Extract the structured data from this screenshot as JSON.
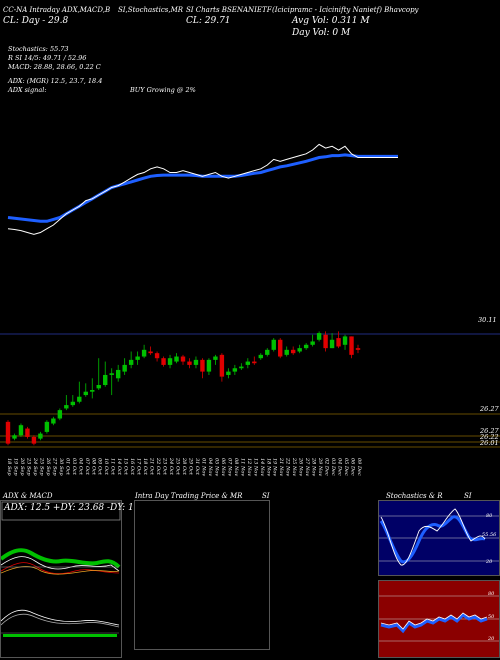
{
  "header": {
    "col1": "CC-NA Intraday ADX,MACD,B",
    "col2": "SI,Stochastics,MR",
    "col3": "SI Charts BSENANIETF",
    "col4": "(Icicipramc - Icicinifty Nanietf) Bhavcopy",
    "line2_left": "CL: Day - 29.8",
    "line2_mid": "CL: 29.71",
    "avg_vol": "Avg Vol: 0.311 M",
    "day_vol": "Day Vol: 0  M"
  },
  "indicators": {
    "stochastics": "Stochastics: 55.73",
    "rsi": "R          SI 14/5: 49.71 / 52.96",
    "macd": "MACD: 28.88, 28.66, 0.22  C",
    "adx": "ADX:                        (MGR) 12.5,  23.7,  18.4",
    "adx_signal": "ADX  signal:",
    "buy": "BUY Growing @ 2%"
  },
  "price_labels": [
    "30.11",
    "26.27",
    "26.27",
    "26.22",
    "26.01"
  ],
  "chart_data": {
    "type": "candlestick",
    "dates": [
      "18 Sep",
      "19 Sep",
      "20 Sep",
      "23 Sep",
      "24 Sep",
      "25 Sep",
      "26 Sep",
      "27 Sep",
      "30 Sep",
      "01 Oct",
      "03 Oct",
      "04 Oct",
      "07 Oct",
      "08 Oct",
      "09 Oct",
      "10 Oct",
      "11 Oct",
      "14 Oct",
      "15 Oct",
      "16 Oct",
      "17 Oct",
      "18 Oct",
      "21 Oct",
      "22 Oct",
      "23 Oct",
      "24 Oct",
      "25 Oct",
      "28 Oct",
      "29 Oct",
      "31 Oct",
      "01 Nov",
      "04 Nov",
      "05 Nov",
      "06 Nov",
      "07 Nov",
      "08 Nov",
      "11 Nov",
      "12 Nov",
      "13 Nov",
      "14 Nov",
      "18 Nov",
      "19 Nov",
      "21 Nov",
      "22 Nov",
      "25 Nov",
      "26 Nov",
      "27 Nov",
      "28 Nov",
      "29 Nov",
      "02 Dec",
      "03 Dec",
      "04 Dec",
      "05 Dec",
      "06 Dec",
      "09 Dec"
    ],
    "candles_note": "open/close/high/low estimated from plot, price units",
    "ohlc": [
      [
        27.4,
        26.75,
        27.45,
        26.7
      ],
      [
        26.9,
        27.0,
        27.05,
        26.85
      ],
      [
        27.0,
        27.3,
        27.35,
        26.95
      ],
      [
        27.2,
        26.95,
        27.25,
        26.9
      ],
      [
        26.95,
        26.75,
        27.0,
        26.7
      ],
      [
        26.9,
        27.05,
        27.1,
        26.85
      ],
      [
        27.1,
        27.4,
        27.45,
        27.05
      ],
      [
        27.35,
        27.5,
        27.55,
        27.3
      ],
      [
        27.5,
        27.75,
        27.8,
        27.45
      ],
      [
        27.8,
        27.9,
        28.2,
        27.75
      ],
      [
        27.9,
        28.0,
        28.2,
        27.85
      ],
      [
        28.0,
        28.15,
        28.6,
        27.95
      ],
      [
        28.2,
        28.3,
        28.55,
        28.15
      ],
      [
        28.3,
        28.35,
        28.7,
        28.1
      ],
      [
        28.4,
        28.5,
        29.3,
        28.35
      ],
      [
        28.5,
        28.8,
        29.2,
        28.45
      ],
      [
        28.8,
        28.85,
        29.0,
        28.2
      ],
      [
        28.7,
        28.95,
        29.1,
        28.6
      ],
      [
        28.9,
        29.1,
        29.3,
        28.8
      ],
      [
        29.1,
        29.25,
        29.5,
        29.0
      ],
      [
        29.25,
        29.35,
        29.5,
        29.1
      ],
      [
        29.35,
        29.55,
        29.7,
        29.3
      ],
      [
        29.5,
        29.45,
        29.65,
        29.4
      ],
      [
        29.45,
        29.3,
        29.5,
        29.2
      ],
      [
        29.3,
        29.1,
        29.35,
        29.05
      ],
      [
        29.1,
        29.3,
        29.4,
        29.0
      ],
      [
        29.2,
        29.35,
        29.45,
        29.15
      ],
      [
        29.35,
        29.2,
        29.4,
        29.1
      ],
      [
        29.2,
        29.1,
        29.3,
        29.0
      ],
      [
        29.1,
        29.25,
        29.35,
        29.0
      ],
      [
        29.25,
        28.9,
        29.3,
        28.7
      ],
      [
        28.9,
        29.25,
        29.3,
        28.8
      ],
      [
        29.25,
        29.35,
        29.4,
        29.1
      ],
      [
        29.4,
        28.75,
        29.45,
        28.6
      ],
      [
        28.8,
        28.9,
        29.0,
        28.7
      ],
      [
        28.9,
        29.0,
        29.1,
        28.8
      ],
      [
        29.0,
        29.05,
        29.15,
        28.95
      ],
      [
        29.1,
        29.2,
        29.3,
        29.0
      ],
      [
        29.2,
        29.15,
        29.35,
        29.1
      ],
      [
        29.3,
        29.4,
        29.45,
        29.25
      ],
      [
        29.4,
        29.55,
        29.6,
        29.35
      ],
      [
        29.55,
        29.85,
        29.9,
        29.5
      ],
      [
        29.85,
        29.35,
        29.9,
        29.3
      ],
      [
        29.4,
        29.55,
        29.65,
        29.35
      ],
      [
        29.55,
        29.45,
        29.65,
        29.4
      ],
      [
        29.5,
        29.6,
        29.7,
        29.45
      ],
      [
        29.6,
        29.7,
        29.75,
        29.55
      ],
      [
        29.7,
        29.8,
        30.0,
        29.65
      ],
      [
        29.85,
        30.05,
        30.1,
        29.8
      ],
      [
        30.0,
        29.6,
        30.1,
        29.5
      ],
      [
        29.6,
        29.85,
        30.05,
        29.6
      ],
      [
        29.9,
        29.65,
        30.1,
        29.6
      ],
      [
        29.7,
        29.95,
        30.0,
        29.55
      ],
      [
        29.95,
        29.4,
        29.95,
        29.3
      ],
      [
        29.6,
        29.55,
        29.7,
        29.45
      ]
    ],
    "ema_white": [
      27.6,
      27.58,
      27.55,
      27.5,
      27.45,
      27.5,
      27.6,
      27.7,
      27.85,
      28.0,
      28.1,
      28.2,
      28.35,
      28.4,
      28.5,
      28.6,
      28.7,
      28.75,
      28.85,
      28.95,
      29.05,
      29.1,
      29.2,
      29.25,
      29.2,
      29.1,
      29.1,
      29.15,
      29.1,
      29.05,
      29.0,
      29.05,
      29.1,
      29.0,
      28.95,
      29.0,
      29.05,
      29.1,
      29.15,
      29.2,
      29.3,
      29.45,
      29.4,
      29.45,
      29.5,
      29.55,
      29.6,
      29.7,
      29.85,
      29.75,
      29.8,
      29.7,
      29.8,
      29.6,
      29.5
    ],
    "ema_blue": [
      27.9,
      27.88,
      27.86,
      27.84,
      27.82,
      27.8,
      27.8,
      27.85,
      27.9,
      28.0,
      28.1,
      28.2,
      28.3,
      28.4,
      28.5,
      28.6,
      28.7,
      28.75,
      28.8,
      28.85,
      28.9,
      28.95,
      29.0,
      29.02,
      29.03,
      29.03,
      29.03,
      29.03,
      29.03,
      29.02,
      29.0,
      29.0,
      29.0,
      29.0,
      29.0,
      29.0,
      29.02,
      29.05,
      29.08,
      29.1,
      29.15,
      29.2,
      29.25,
      29.28,
      29.32,
      29.36,
      29.4,
      29.45,
      29.5,
      29.52,
      29.55,
      29.55,
      29.57,
      29.55,
      29.53
    ],
    "ylim": [
      26.5,
      30.5
    ]
  },
  "bottom": {
    "adx_panel_title": "ADX  & MACD",
    "adx_box_text": "ADX: 12.5   +DY: 23.68   -DY: 18.42",
    "intraday_title": "Intra  Day Trading Price  & MR",
    "intraday_title2": "SI",
    "stoch_title": "Stochastics & R",
    "stoch_title2": "SI",
    "stoch_ticks": [
      "80",
      "55.56",
      "50",
      "20"
    ],
    "rsi_ticks": [
      "80",
      "50",
      "20"
    ]
  },
  "colors": {
    "up": "#00c000",
    "down": "#e00000",
    "ema": "#1e5fff",
    "rsi_bg": "#8b0000"
  }
}
